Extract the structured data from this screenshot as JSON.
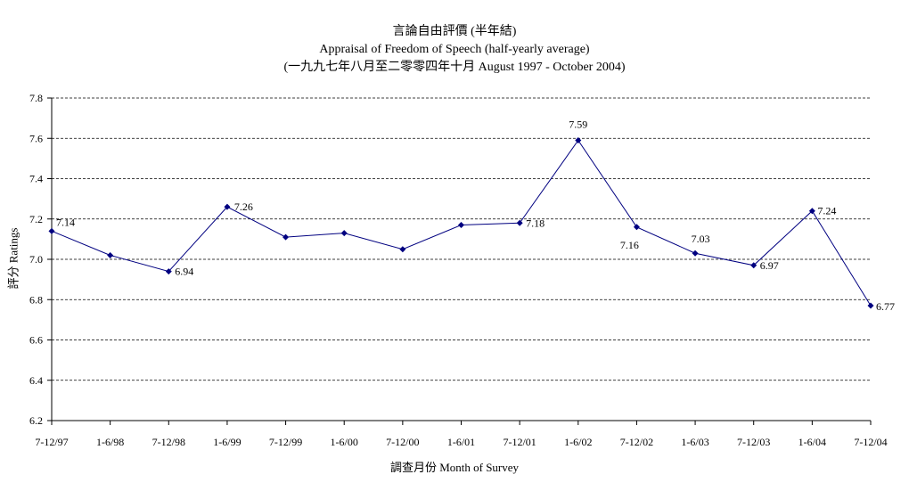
{
  "titles": {
    "line1": "言論自由評價 (半年結)",
    "line2": "Appraisal of Freedom of Speech (half-yearly average)",
    "line3": "(一九九七年八月至二零零四年十月 August 1997 - October 2004)"
  },
  "chart_data": {
    "type": "line",
    "title": "言論自由評價 (半年結) Appraisal of Freedom of Speech (half-yearly average)",
    "subtitle": "(一九九七年八月至二零零四年十月 August 1997 - October 2004)",
    "xlabel": "調查月份 Month of Survey",
    "ylabel": "評分 Ratings",
    "categories": [
      "7-12/97",
      "1-6/98",
      "7-12/98",
      "1-6/99",
      "7-12/99",
      "1-6/00",
      "7-12/00",
      "1-6/01",
      "7-12/01",
      "1-6/02",
      "7-12/02",
      "1-6/03",
      "7-12/03",
      "1-6/04",
      "7-12/04"
    ],
    "values": [
      7.14,
      7.02,
      6.94,
      7.26,
      7.11,
      7.13,
      7.05,
      7.17,
      7.18,
      7.59,
      7.16,
      7.03,
      6.97,
      7.24,
      6.77
    ],
    "data_labels": [
      "7.14",
      "",
      "6.94",
      "7.26",
      "",
      "",
      "",
      "",
      "7.18",
      "7.59",
      "7.16",
      "7.03",
      "6.97",
      "7.24",
      "6.77"
    ],
    "ylim": [
      6.2,
      7.8
    ],
    "yticks": [
      "6.2",
      "6.4",
      "6.6",
      "6.8",
      "7.0",
      "7.2",
      "7.4",
      "7.6",
      "7.8"
    ],
    "grid": "horizontal-dashed",
    "line_color": "#000080"
  }
}
